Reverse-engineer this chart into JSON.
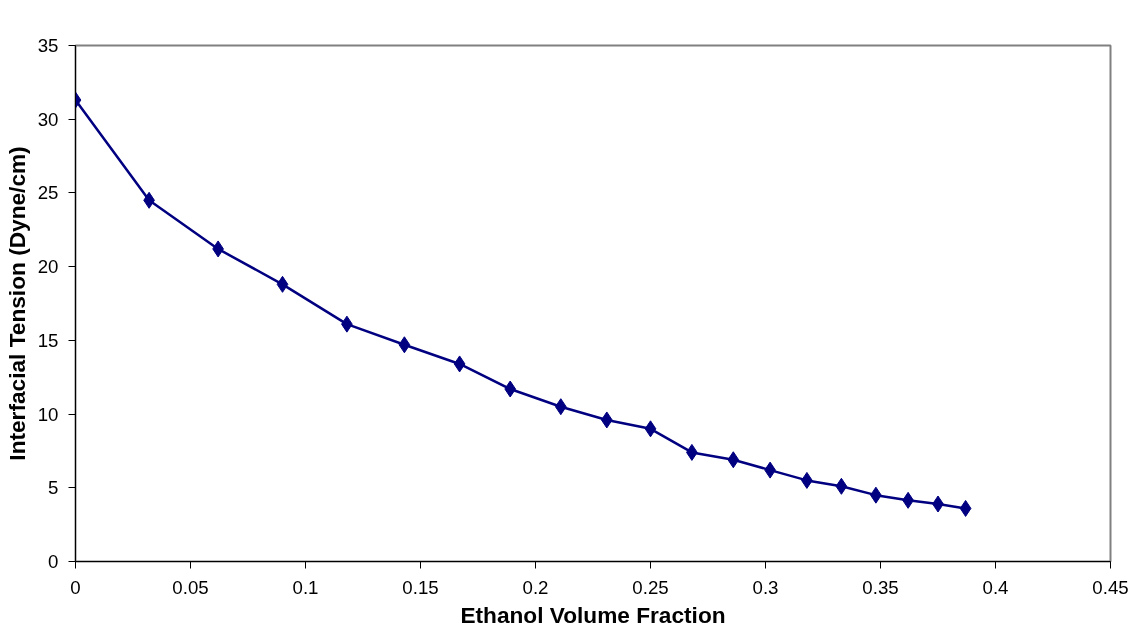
{
  "chart_data": {
    "type": "line",
    "xlabel": "Ethanol Volume Fraction",
    "ylabel": "Interfacial Tension (Dyne/cm)",
    "x": [
      0,
      0.032,
      0.062,
      0.09,
      0.118,
      0.143,
      0.167,
      0.189,
      0.211,
      0.231,
      0.25,
      0.268,
      0.286,
      0.302,
      0.318,
      0.333,
      0.348,
      0.362,
      0.375,
      0.387
    ],
    "series": [
      {
        "color": "#000080",
        "values": [
          31.3,
          24.5,
          21.2,
          18.8,
          16.1,
          14.7,
          13.4,
          11.7,
          10.5,
          9.6,
          9.0,
          7.4,
          6.9,
          6.2,
          5.5,
          5.1,
          4.5,
          4.15,
          3.9,
          3.6
        ]
      }
    ],
    "xlim": [
      0,
      0.45
    ],
    "xticks": [
      0,
      0.05,
      0.1,
      0.15,
      0.2,
      0.25,
      0.3,
      0.35,
      0.4,
      0.45
    ],
    "ylim": [
      0,
      35
    ],
    "yticks": [
      0,
      5,
      10,
      15,
      20,
      25,
      30,
      35
    ],
    "grid": false,
    "marker": "diamond",
    "line_style": "solid"
  }
}
